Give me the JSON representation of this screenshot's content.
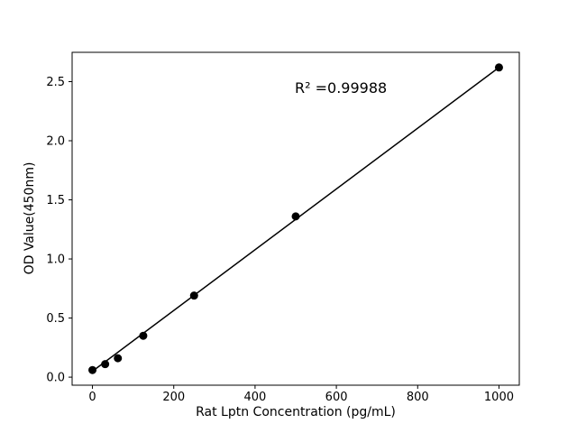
{
  "figure": {
    "background": "#ffffff"
  },
  "chart_data": {
    "type": "scatter",
    "title": "",
    "xlabel": "Rat Lptn Concentration (pg/mL)",
    "ylabel": "OD Value(450nm)",
    "annotation": {
      "text": "R² =0.99988"
    },
    "x": [
      0,
      31.25,
      62.5,
      125,
      250,
      500,
      1000
    ],
    "y": [
      0.06,
      0.11,
      0.16,
      0.35,
      0.69,
      1.36,
      2.62
    ],
    "fit_line": {
      "x": [
        0,
        1000
      ],
      "y": [
        0.05,
        2.62
      ]
    },
    "xlim": [
      -50,
      1050
    ],
    "ylim": [
      -0.068,
      2.748
    ],
    "xticks": [
      0,
      200,
      400,
      600,
      800,
      1000
    ],
    "xtick_labels": [
      "0",
      "200",
      "400",
      "600",
      "800",
      "1000"
    ],
    "yticks": [
      0,
      0.5,
      1,
      1.5,
      2,
      2.5
    ],
    "ytick_labels": [
      "0.0",
      "0.5",
      "1.0",
      "1.5",
      "2.0",
      "2.5"
    ],
    "marker_color": "#000000",
    "line_color": "#000000",
    "grid": false,
    "legend": "none"
  }
}
